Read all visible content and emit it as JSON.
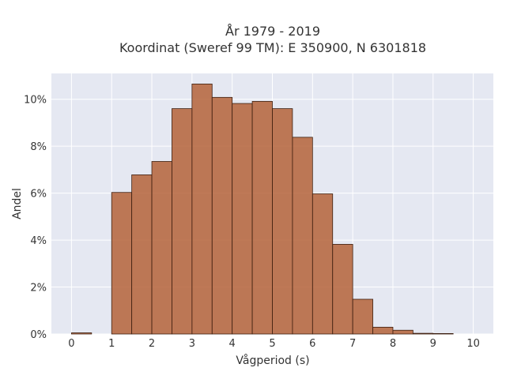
{
  "chart_data": {
    "type": "bar",
    "title": "År 1979 - 2019",
    "subtitle": "Koordinat (Sweref 99 TM): E 350900, N 6301818",
    "xlabel": "Vågperiod (s)",
    "ylabel": "Andel",
    "xlim": [
      -0.5,
      10.5
    ],
    "ylim": [
      0,
      0.111
    ],
    "x_ticks": [
      0,
      1,
      2,
      3,
      4,
      5,
      6,
      7,
      8,
      9,
      10
    ],
    "y_ticks": [
      0,
      0.02,
      0.04,
      0.06,
      0.08,
      0.1
    ],
    "y_tick_labels": [
      "0%",
      "2%",
      "4%",
      "6%",
      "8%",
      "10%"
    ],
    "bin_width": 0.5,
    "bins": [
      {
        "x0": 0.0,
        "value": 0.0005
      },
      {
        "x0": 0.5,
        "value": 0.0
      },
      {
        "x0": 1.0,
        "value": 0.0603
      },
      {
        "x0": 1.5,
        "value": 0.0678
      },
      {
        "x0": 2.0,
        "value": 0.0735
      },
      {
        "x0": 2.5,
        "value": 0.096
      },
      {
        "x0": 3.0,
        "value": 0.1065
      },
      {
        "x0": 3.5,
        "value": 0.1008
      },
      {
        "x0": 4.0,
        "value": 0.0982
      },
      {
        "x0": 4.5,
        "value": 0.0991
      },
      {
        "x0": 5.0,
        "value": 0.096
      },
      {
        "x0": 5.5,
        "value": 0.0838
      },
      {
        "x0": 6.0,
        "value": 0.0597
      },
      {
        "x0": 6.5,
        "value": 0.0382
      },
      {
        "x0": 7.0,
        "value": 0.0148
      },
      {
        "x0": 7.5,
        "value": 0.0029
      },
      {
        "x0": 8.0,
        "value": 0.0016
      },
      {
        "x0": 8.5,
        "value": 0.0003
      },
      {
        "x0": 9.0,
        "value": 0.0002
      },
      {
        "x0": 9.5,
        "value": 0.0
      }
    ],
    "grid": true,
    "legend": "none",
    "colors": {
      "bar_fill": "#b5633a",
      "bar_stroke": "#3d1f10",
      "plot_background": "#e5e8f2",
      "grid": "#ffffff"
    }
  }
}
